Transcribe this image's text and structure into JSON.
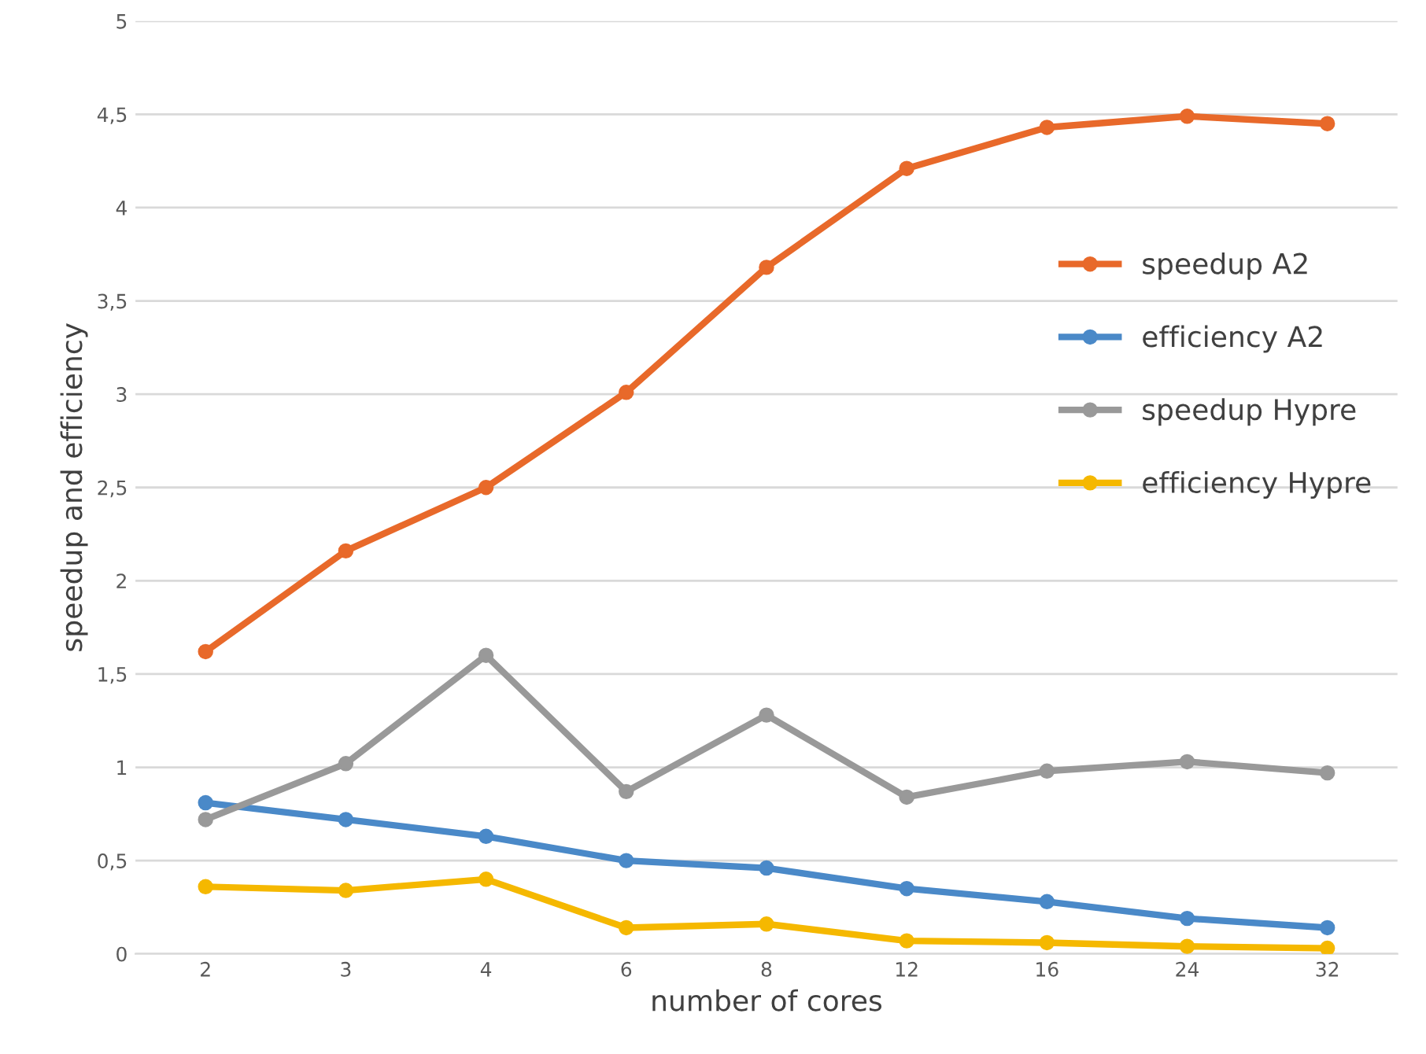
{
  "chart_data": {
    "type": "line",
    "xlabel": "number of cores",
    "ylabel": "speedup and efficiency",
    "categories": [
      "2",
      "3",
      "4",
      "6",
      "8",
      "12",
      "16",
      "24",
      "32"
    ],
    "series": [
      {
        "name": "speedup A2",
        "color": "#e8692a",
        "values": [
          1.62,
          2.16,
          2.5,
          3.01,
          3.68,
          4.21,
          4.43,
          4.49,
          4.45
        ]
      },
      {
        "name": "efficiency A2",
        "color": "#4a89c8",
        "values": [
          0.81,
          0.72,
          0.63,
          0.5,
          0.46,
          0.35,
          0.28,
          0.19,
          0.14
        ]
      },
      {
        "name": "speedup Hypre",
        "color": "#999999",
        "values": [
          0.72,
          1.02,
          1.6,
          0.87,
          1.28,
          0.84,
          0.98,
          1.03,
          0.97
        ]
      },
      {
        "name": "efficiency Hypre",
        "color": "#f5b800",
        "values": [
          0.36,
          0.34,
          0.4,
          0.14,
          0.16,
          0.07,
          0.06,
          0.04,
          0.03
        ]
      }
    ],
    "ylim": [
      0,
      5
    ],
    "yticks": [
      0,
      {
        "value": 0.5,
        "label": "0,5"
      },
      1,
      {
        "value": 1.5,
        "label": "1,5"
      },
      2,
      {
        "value": 2.5,
        "label": "2,5"
      },
      3,
      {
        "value": 3.5,
        "label": "3,5"
      },
      4,
      {
        "value": 4.5,
        "label": "4,5"
      },
      5
    ],
    "grid": "y",
    "legend": "right",
    "marker": "circle",
    "line_style": "solid"
  }
}
